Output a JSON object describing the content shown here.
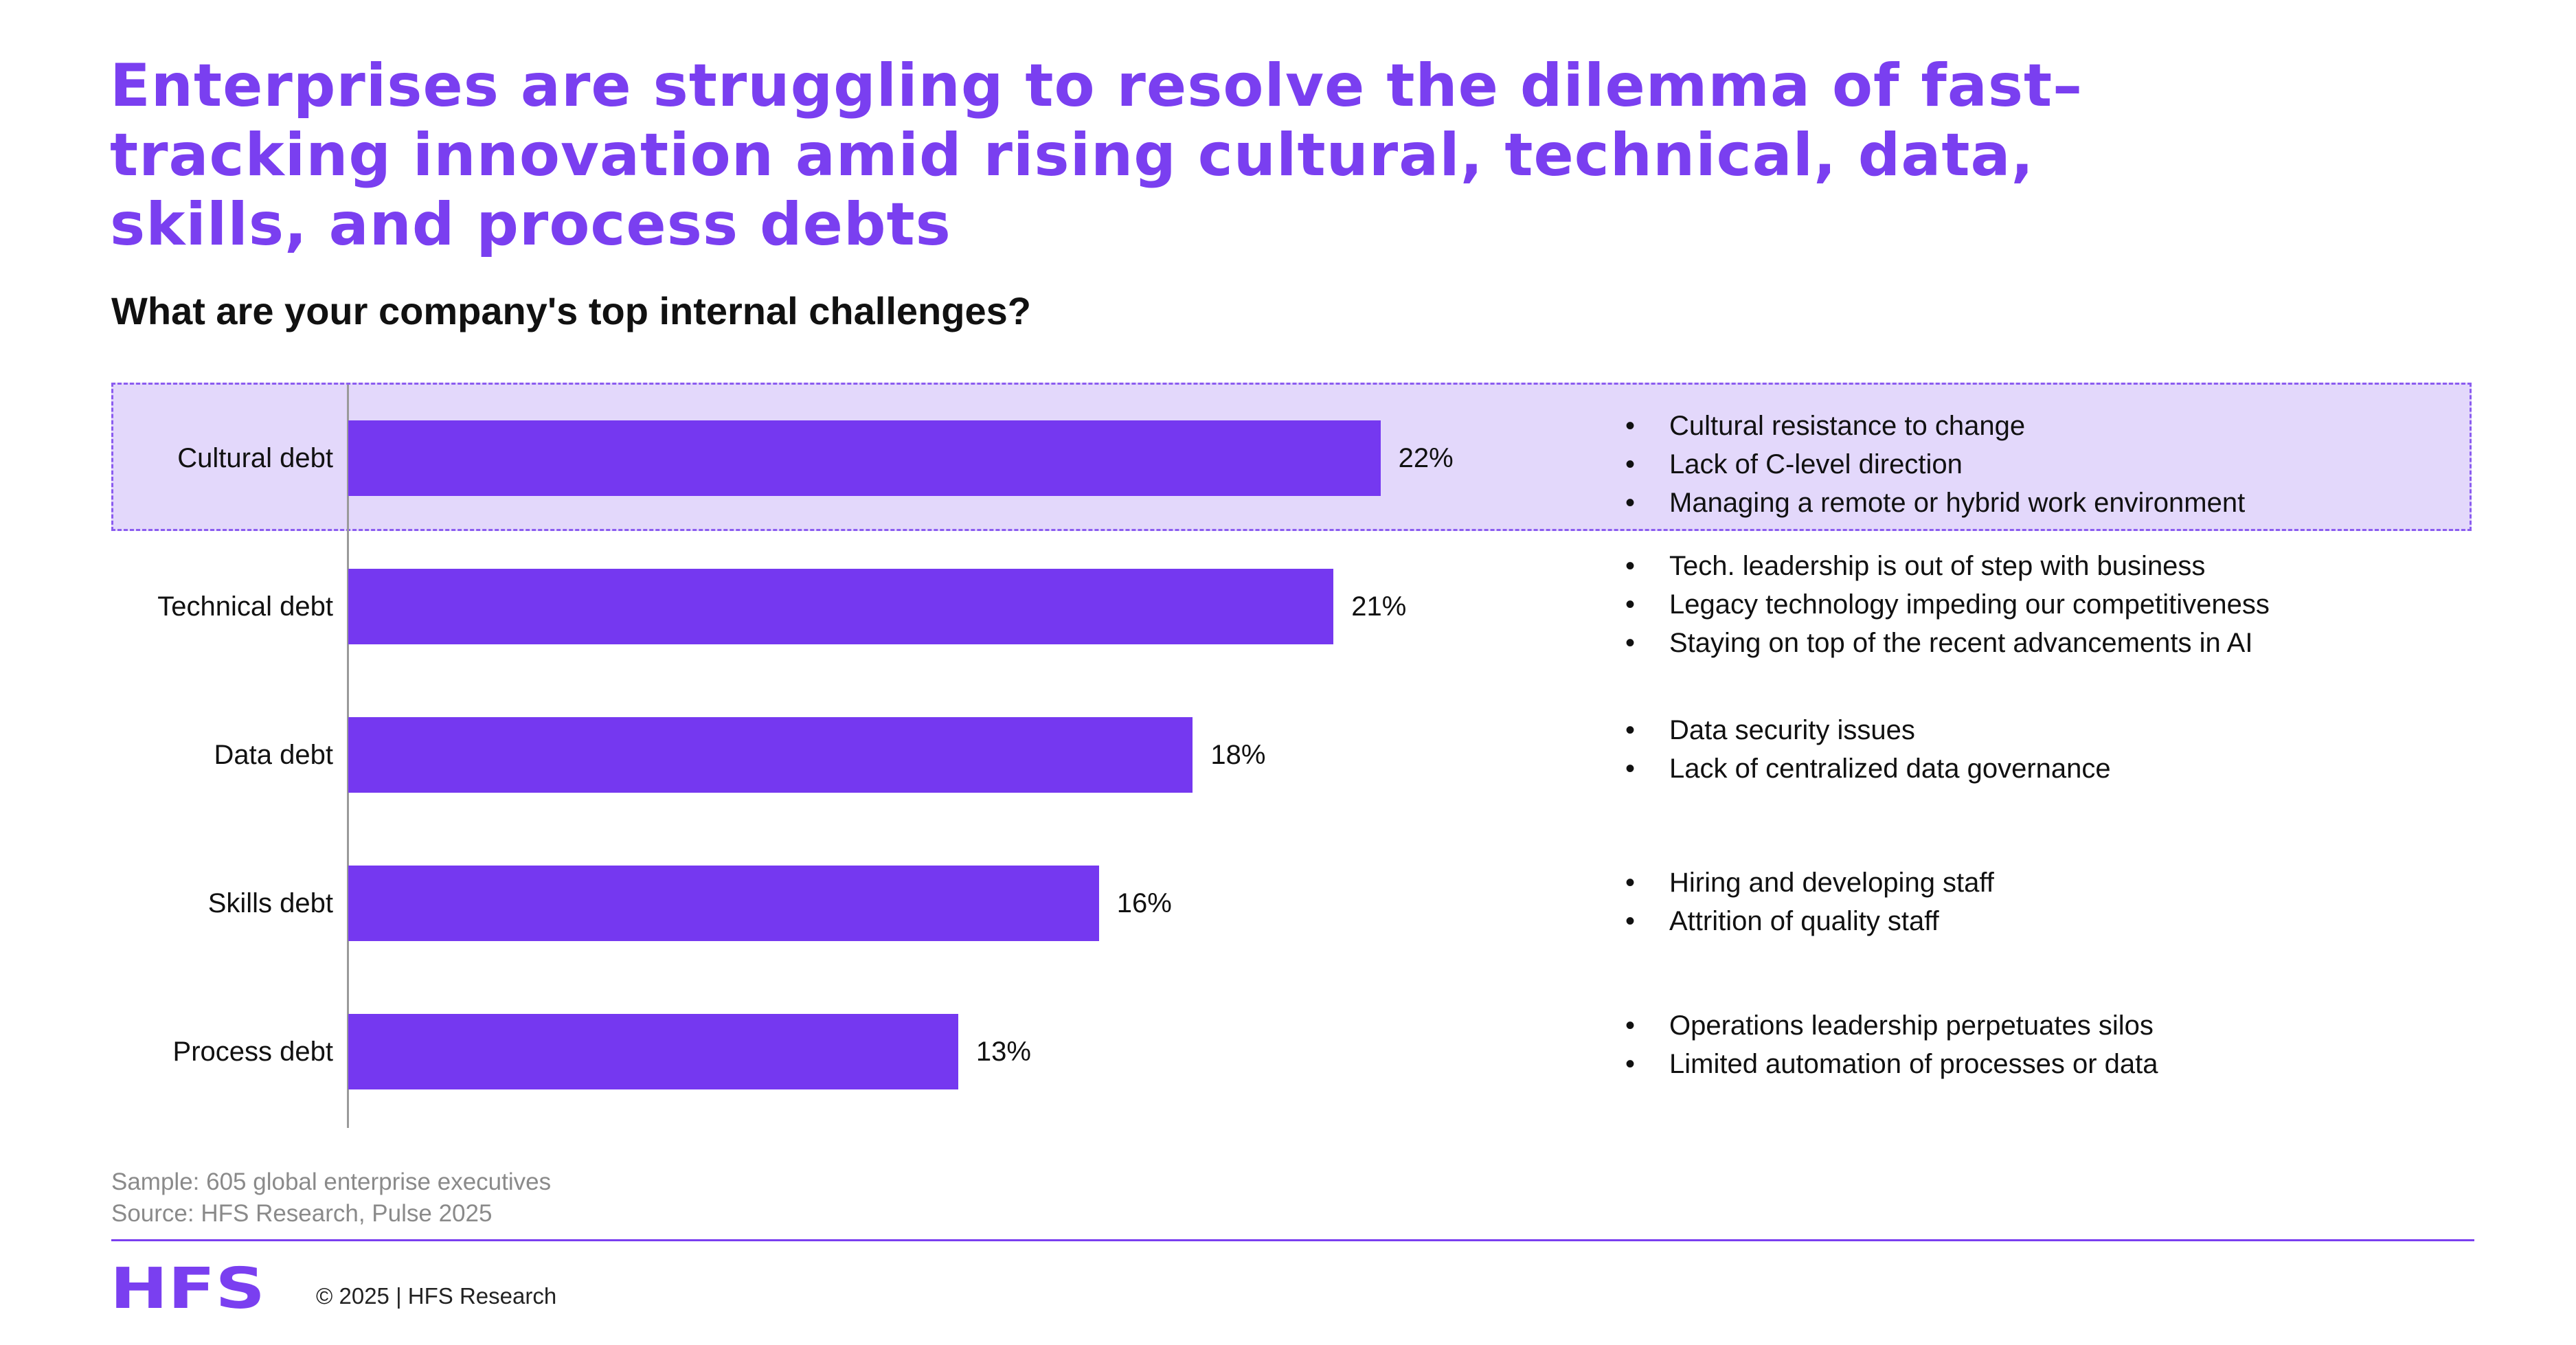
{
  "title_lines": [
    "Enterprises are struggling to resolve the dilemma of fast–",
    "tracking innovation amid rising cultural, technical, data,",
    "skills, and process debts"
  ],
  "subtitle": "What are your company's top internal challenges?",
  "colors": {
    "bar": "#7538f0",
    "title": "#7a3ff0",
    "highlight_band": "#e3d8fb",
    "highlight_border": "#8b5cf0"
  },
  "chart_data": {
    "type": "bar",
    "orientation": "horizontal",
    "categories": [
      "Cultural debt",
      "Technical debt",
      "Data debt",
      "Skills debt",
      "Process debt"
    ],
    "values": [
      22,
      21,
      18,
      16,
      13
    ],
    "value_labels": [
      "22%",
      "21%",
      "18%",
      "16%",
      "13%"
    ],
    "xlim": [
      0,
      30
    ],
    "grid": false,
    "highlighted_category": "Cultural debt"
  },
  "challenges": [
    [
      "Cultural resistance to change",
      "Lack of C-level direction",
      "Managing a remote or hybrid work environment"
    ],
    [
      "Tech. leadership is out of step with business",
      "Legacy technology impeding our competitiveness",
      "Staying on top of the recent advancements in AI"
    ],
    [
      "Data security issues",
      "Lack of centralized data governance"
    ],
    [
      "Hiring and developing staff",
      "Attrition of quality staff"
    ],
    [
      "Operations leadership perpetuates silos",
      "Limited automation of processes or data"
    ]
  ],
  "footnotes": {
    "sample": "Sample: 605 global enterprise executives",
    "source": "Source: HFS Research, Pulse 2025"
  },
  "footer": {
    "logo_text": "HFS",
    "copyright": "© 2025 | HFS Research"
  }
}
